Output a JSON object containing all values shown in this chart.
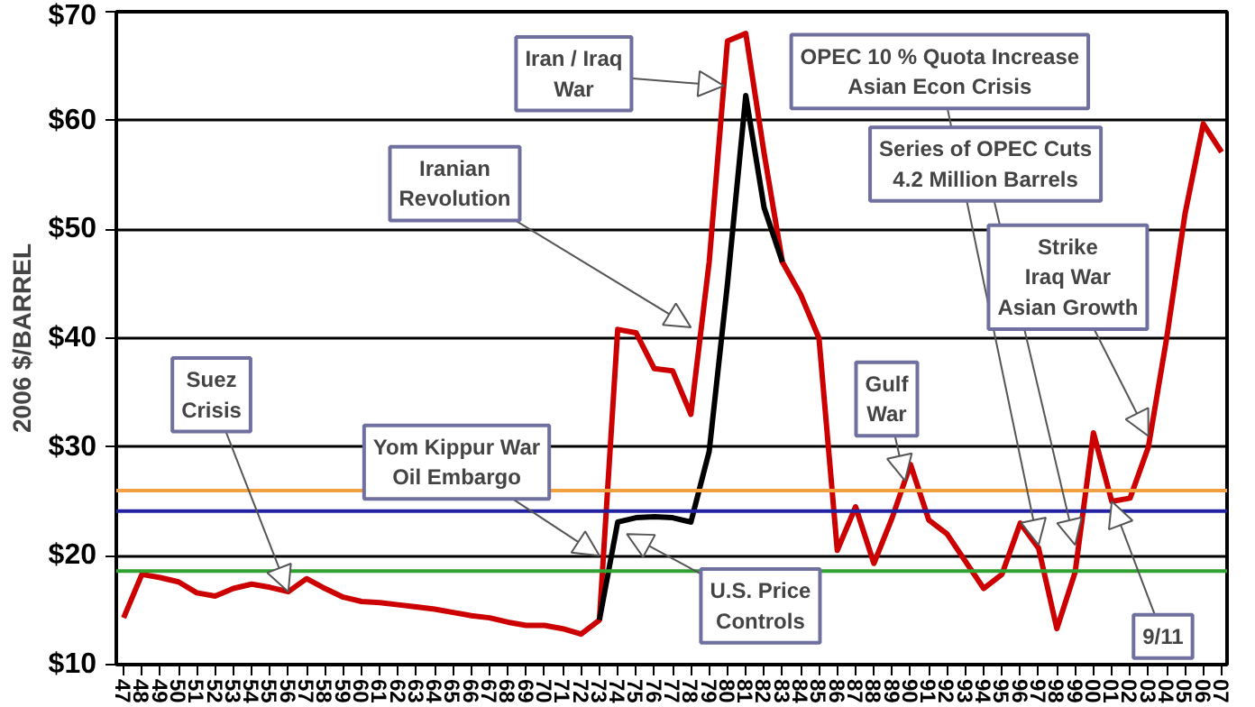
{
  "chart_data": {
    "type": "line",
    "ylabel": "2006 $/BARREL",
    "x": [
      1947,
      1948,
      1949,
      1950,
      1951,
      1952,
      1953,
      1954,
      1955,
      1956,
      1957,
      1958,
      1959,
      1960,
      1961,
      1962,
      1963,
      1964,
      1965,
      1966,
      1967,
      1968,
      1969,
      1970,
      1971,
      1972,
      1973,
      1974,
      1975,
      1976,
      1977,
      1978,
      1979,
      1980,
      1981,
      1982,
      1983,
      1984,
      1985,
      1986,
      1987,
      1988,
      1989,
      1990,
      1991,
      1992,
      1993,
      1994,
      1995,
      1996,
      1997,
      1998,
      1999,
      2000,
      2001,
      2002,
      2003,
      2004,
      2005,
      2006,
      2007
    ],
    "series": [
      {
        "color": "#cc0000",
        "values": [
          14.3,
          18.3,
          18,
          17.6,
          16.6,
          16.3,
          17,
          17.4,
          17.1,
          16.7,
          17.9,
          17,
          16.2,
          15.8,
          15.7,
          15.5,
          15.3,
          15.1,
          14.8,
          14.5,
          14.3,
          13.9,
          13.6,
          13.6,
          13.3,
          12.8,
          14.1,
          40.8,
          40.5,
          37.2,
          37,
          33,
          47,
          67.3,
          68,
          57,
          47,
          44,
          40,
          20.5,
          24.5,
          19.3,
          23.5,
          28.4,
          23.3,
          22,
          19.5,
          17,
          18.3,
          23,
          20.7,
          13.3,
          18.5,
          31.3,
          25,
          25.3,
          30,
          40,
          51.4,
          59.7,
          57.1
        ]
      },
      {
        "color": "#000000",
        "x": [
          1973,
          1974,
          1975,
          1976,
          1977,
          1978,
          1979,
          1980,
          1981,
          1982,
          1983
        ],
        "values": [
          14.1,
          23.1,
          23.5,
          23.6,
          23.5,
          23.1,
          29.6,
          45,
          62.3,
          52,
          47
        ]
      }
    ],
    "xlim": [
      1946.6,
      2007.3
    ],
    "xticks": [
      {
        "value": 1947,
        "label": "47"
      },
      {
        "value": 1948,
        "label": "48"
      },
      {
        "value": 1949,
        "label": "49"
      },
      {
        "value": 1950,
        "label": "50"
      },
      {
        "value": 1951,
        "label": "51"
      },
      {
        "value": 1952,
        "label": "52"
      },
      {
        "value": 1953,
        "label": "53"
      },
      {
        "value": 1954,
        "label": "54"
      },
      {
        "value": 1955,
        "label": "55"
      },
      {
        "value": 1956,
        "label": "56"
      },
      {
        "value": 1957,
        "label": "57"
      },
      {
        "value": 1958,
        "label": "58"
      },
      {
        "value": 1959,
        "label": "59"
      },
      {
        "value": 1960,
        "label": "60"
      },
      {
        "value": 1961,
        "label": "61"
      },
      {
        "value": 1962,
        "label": "62"
      },
      {
        "value": 1963,
        "label": "63"
      },
      {
        "value": 1964,
        "label": "64"
      },
      {
        "value": 1965,
        "label": "65"
      },
      {
        "value": 1966,
        "label": "66"
      },
      {
        "value": 1967,
        "label": "67"
      },
      {
        "value": 1968,
        "label": "68"
      },
      {
        "value": 1969,
        "label": "69"
      },
      {
        "value": 1970,
        "label": "70"
      },
      {
        "value": 1971,
        "label": "71"
      },
      {
        "value": 1972,
        "label": "72"
      },
      {
        "value": 1973,
        "label": "73"
      },
      {
        "value": 1974,
        "label": "74"
      },
      {
        "value": 1975,
        "label": "75"
      },
      {
        "value": 1976,
        "label": "76"
      },
      {
        "value": 1977,
        "label": "77"
      },
      {
        "value": 1978,
        "label": "78"
      },
      {
        "value": 1979,
        "label": "79"
      },
      {
        "value": 1980,
        "label": "80"
      },
      {
        "value": 1981,
        "label": "81"
      },
      {
        "value": 1982,
        "label": "82"
      },
      {
        "value": 1983,
        "label": "83"
      },
      {
        "value": 1984,
        "label": "84"
      },
      {
        "value": 1985,
        "label": "85"
      },
      {
        "value": 1986,
        "label": "86"
      },
      {
        "value": 1987,
        "label": "87"
      },
      {
        "value": 1988,
        "label": "88"
      },
      {
        "value": 1989,
        "label": "89"
      },
      {
        "value": 1990,
        "label": "90"
      },
      {
        "value": 1991,
        "label": "91"
      },
      {
        "value": 1992,
        "label": "92"
      },
      {
        "value": 1993,
        "label": "93"
      },
      {
        "value": 1994,
        "label": "94"
      },
      {
        "value": 1995,
        "label": "95"
      },
      {
        "value": 1996,
        "label": "96"
      },
      {
        "value": 1997,
        "label": "97"
      },
      {
        "value": 1998,
        "label": "98"
      },
      {
        "value": 1999,
        "label": "99"
      },
      {
        "value": 2000,
        "label": "00"
      },
      {
        "value": 2001,
        "label": "01"
      },
      {
        "value": 2002,
        "label": "02"
      },
      {
        "value": 2003,
        "label": "03"
      },
      {
        "value": 2004,
        "label": "04"
      },
      {
        "value": 2005,
        "label": "05"
      },
      {
        "value": 2006,
        "label": "06"
      },
      {
        "value": 2007,
        "label": "07"
      }
    ],
    "ylim": [
      10,
      70
    ],
    "yticks": [
      {
        "value": 10,
        "label": "$10"
      },
      {
        "value": 20,
        "label": "$20"
      },
      {
        "value": 30,
        "label": "$30"
      },
      {
        "value": 40,
        "label": "$40"
      },
      {
        "value": 50,
        "label": "$50"
      },
      {
        "value": 60,
        "label": "$60"
      },
      {
        "value": 70,
        "label": "$70"
      }
    ],
    "grid": "y",
    "marker": "none",
    "line_style": "solid",
    "ref_lines": [
      {
        "axis": "y",
        "value": 26,
        "color": "#f0a040"
      },
      {
        "axis": "y",
        "value": 24.1,
        "color": "#2020a0"
      },
      {
        "axis": "y",
        "value": 18.6,
        "color": "#30a030"
      }
    ],
    "annotations": [
      {
        "text": "Suez\nCrisis",
        "x": 1956,
        "y": 16.7
      },
      {
        "text": "Yom Kippur War\nOil Embargo",
        "x": 1973,
        "y": 20
      },
      {
        "text": "Iranian\nRevolution",
        "x": 1978,
        "y": 41
      },
      {
        "text": "Iran / Iraq\nWar",
        "x": 1979.8,
        "y": 63.2
      },
      {
        "text": "OPEC 10 % Quota Increase\nAsian Econ Crisis",
        "x": 1997,
        "y": 21
      },
      {
        "text": "Series of OPEC Cuts\n4.2 Million Barrels",
        "x": 1999,
        "y": 21
      },
      {
        "text": "Strike\nIraq War\nAsian Growth",
        "x": 2003,
        "y": 31
      },
      {
        "text": "Gulf\nWar",
        "x": 1989.7,
        "y": 26.9
      },
      {
        "text": "U.S. Price\nControls",
        "x": 1974.5,
        "y": 22
      },
      {
        "text": "9/11",
        "x": 2001,
        "y": 25
      }
    ]
  }
}
